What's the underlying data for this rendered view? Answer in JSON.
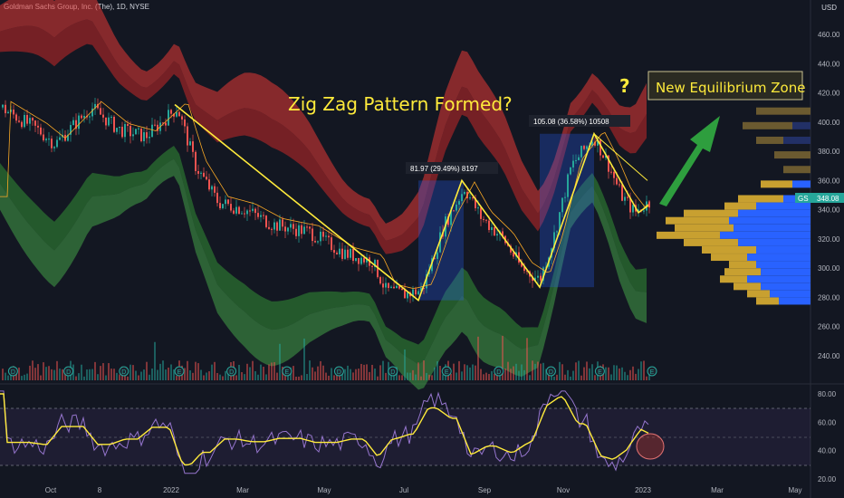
{
  "header": {
    "symbol_line": "Goldman Sachs Group, Inc. (The), 1D, NYSE",
    "currency": "USD"
  },
  "colors": {
    "background": "#131722",
    "up_candle": "#26a69a",
    "down_candle": "#ef5350",
    "annotation": "#ffeb3b",
    "arrow": "#2e9e3e",
    "profile_gold": "#c8a030",
    "profile_blue": "#2962ff",
    "rsi_line": "#9575cd",
    "rsi_ma": "#ffeb3b"
  },
  "chart_data": [
    {
      "type": "candlestick",
      "price_axis": {
        "min": 220,
        "max": 470,
        "ticks": [
          "460.00",
          "440.00",
          "420.00",
          "400.00",
          "380.00",
          "360.00",
          "340.00",
          "320.00",
          "300.00",
          "280.00",
          "260.00",
          "240.00"
        ]
      },
      "time_axis": [
        "Oct",
        "8",
        "2022",
        "Mar",
        "May",
        "Jul",
        "Sep",
        "Nov",
        "2023",
        "Mar",
        "May"
      ],
      "last_price": {
        "symbol": "GS",
        "value": "348.08"
      },
      "swings": [
        {
          "label": "81.97 (29.49%) 8197",
          "from": 278,
          "to": 360
        },
        {
          "label": "105.08 (36.58%) 10508",
          "from": 287,
          "to": 392
        }
      ],
      "annotations": {
        "title": "Zig Zag Pattern Formed?",
        "question": "?",
        "zone_label": "New Equilibrium Zone"
      },
      "zigzag_points": [
        {
          "date": "2022-01-18",
          "price": 412
        },
        {
          "date": "2022-07-14",
          "price": 278
        },
        {
          "date": "2022-08-16",
          "price": 360
        },
        {
          "date": "2022-10-03",
          "price": 287
        },
        {
          "date": "2022-11-15",
          "price": 392
        },
        {
          "date": "2022-12-20",
          "price": 338
        },
        {
          "date": "2022-12-30",
          "price": 343
        }
      ],
      "earnings_markers": [
        "D",
        "D",
        "D",
        "E",
        "D",
        "E",
        "D",
        "D",
        "E",
        "D",
        "D",
        "E",
        "E"
      ]
    },
    {
      "type": "line",
      "name": "RSI",
      "y_axis": {
        "min": 20,
        "max": 85,
        "ticks": [
          "80.00",
          "60.00",
          "40.00",
          "20.00"
        ]
      },
      "bands": [
        30,
        50,
        70
      ]
    }
  ]
}
